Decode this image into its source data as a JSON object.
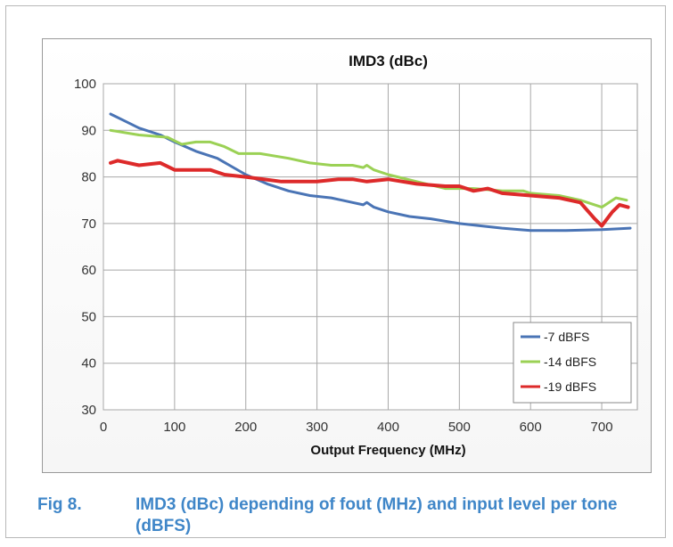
{
  "caption": {
    "number": "Fig 8.",
    "text": "IMD3 (dBc) depending of fout (MHz) and input level per tone (dBFS)"
  },
  "chart_data": {
    "type": "line",
    "title": "IMD3  (dBc)",
    "xlabel": "Output Frequency (MHz)",
    "ylabel": "",
    "xlim": [
      0,
      750
    ],
    "ylim": [
      30,
      100
    ],
    "x_ticks": [
      0,
      100,
      200,
      300,
      400,
      500,
      600,
      700
    ],
    "y_ticks": [
      30,
      40,
      50,
      60,
      70,
      80,
      90,
      100
    ],
    "grid": true,
    "legend_position": "bottom-right",
    "series": [
      {
        "name": "-7 dBFS",
        "color": "#4a74b5",
        "x": [
          10,
          30,
          50,
          80,
          100,
          130,
          160,
          200,
          230,
          260,
          290,
          320,
          350,
          365,
          370,
          380,
          400,
          430,
          460,
          500,
          530,
          560,
          600,
          650,
          700,
          740
        ],
        "y": [
          93.5,
          92,
          90.5,
          89,
          87.5,
          85.5,
          84,
          80.5,
          78.5,
          77,
          76,
          75.5,
          74.5,
          74,
          74.5,
          73.5,
          72.5,
          71.5,
          71,
          70,
          69.5,
          69,
          68.5,
          68.5,
          68.7,
          69
        ]
      },
      {
        "name": "-14 dBFS",
        "color": "#9bd155",
        "x": [
          10,
          50,
          90,
          110,
          130,
          150,
          170,
          190,
          220,
          260,
          290,
          320,
          350,
          365,
          370,
          380,
          400,
          440,
          480,
          520,
          560,
          590,
          600,
          640,
          670,
          700,
          720,
          735
        ],
        "y": [
          90,
          89,
          88.5,
          87,
          87.5,
          87.5,
          86.5,
          85,
          85,
          84,
          83,
          82.5,
          82.5,
          82,
          82.5,
          81.5,
          80.5,
          79,
          77.5,
          77.5,
          77,
          77,
          76.5,
          76,
          75,
          73.5,
          75.5,
          75
        ]
      },
      {
        "name": "-19 dBFS",
        "color": "#dd2a2a",
        "x": [
          10,
          20,
          50,
          80,
          100,
          130,
          150,
          170,
          200,
          250,
          300,
          330,
          350,
          370,
          400,
          440,
          480,
          500,
          520,
          540,
          560,
          600,
          640,
          670,
          690,
          700,
          715,
          725,
          737
        ],
        "y": [
          83,
          83.5,
          82.5,
          83,
          81.5,
          81.5,
          81.5,
          80.5,
          80,
          79,
          79,
          79.5,
          79.5,
          79,
          79.5,
          78.5,
          78,
          78,
          77,
          77.5,
          76.5,
          76,
          75.5,
          74.5,
          71,
          69.5,
          72.5,
          74,
          73.5
        ]
      }
    ]
  }
}
